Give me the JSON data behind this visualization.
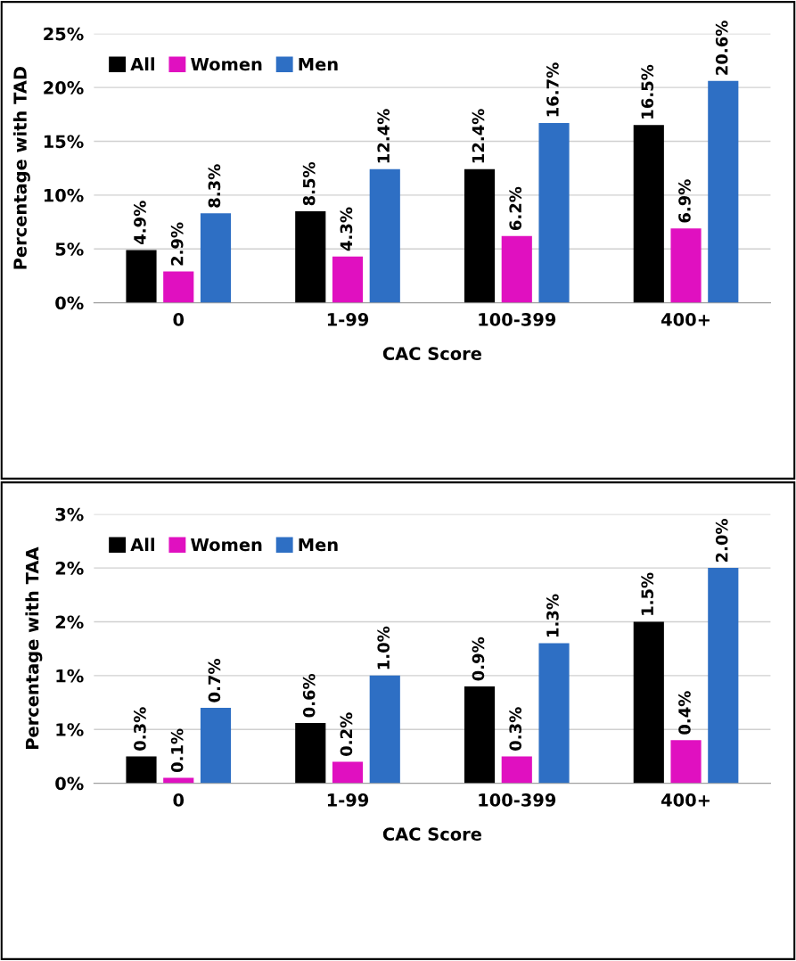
{
  "chart_data": [
    {
      "type": "bar",
      "xlabel": "CAC Score",
      "ylabel": "Percentage with TAD",
      "categories": [
        "0",
        "1-99",
        "100-399",
        "400+"
      ],
      "series": [
        {
          "name": "All",
          "color": "#000000",
          "values": [
            4.9,
            8.5,
            12.4,
            16.5
          ],
          "value_labels": [
            "4.9%",
            "8.5%",
            "12.4%",
            "16.5%"
          ]
        },
        {
          "name": "Women",
          "color": "#e010c0",
          "values": [
            2.9,
            4.3,
            6.2,
            6.9
          ],
          "value_labels": [
            "2.9%",
            "4.3%",
            "6.2%",
            "6.9%"
          ]
        },
        {
          "name": "Men",
          "color": "#2e6fc4",
          "values": [
            8.3,
            12.4,
            16.7,
            20.6
          ],
          "value_labels": [
            "8.3%",
            "12.4%",
            "16.7%",
            "20.6%"
          ]
        }
      ],
      "ylim": [
        0,
        25
      ],
      "yticks": [
        {
          "value": 0,
          "label": "0%"
        },
        {
          "value": 5,
          "label": "5%"
        },
        {
          "value": 10,
          "label": "10%"
        },
        {
          "value": 15,
          "label": "15%"
        },
        {
          "value": 20,
          "label": "20%"
        },
        {
          "value": 25,
          "label": "25%"
        }
      ],
      "grid": "y",
      "legend": "top left"
    },
    {
      "type": "bar",
      "xlabel": "CAC Score",
      "ylabel": "Percentage with TAA",
      "categories": [
        "0",
        "1-99",
        "100-399",
        "400+"
      ],
      "series": [
        {
          "name": "All",
          "color": "#000000",
          "values": [
            0.25,
            0.56,
            0.9,
            1.5
          ],
          "value_labels": [
            "0.3%",
            "0.6%",
            "0.9%",
            "1.5%"
          ]
        },
        {
          "name": "Women",
          "color": "#e010c0",
          "values": [
            0.05,
            0.2,
            0.25,
            0.4
          ],
          "value_labels": [
            "0.1%",
            "0.2%",
            "0.3%",
            "0.4%"
          ]
        },
        {
          "name": "Men",
          "color": "#2e6fc4",
          "values": [
            0.7,
            1.0,
            1.3,
            2.0
          ],
          "value_labels": [
            "0.7%",
            "1.0%",
            "1.3%",
            "2.0%"
          ]
        }
      ],
      "ylim": [
        0,
        2.5
      ],
      "yticks": [
        {
          "value": 0,
          "label": "0%"
        },
        {
          "value": 0.5,
          "label": "1%"
        },
        {
          "value": 1.0,
          "label": "1%"
        },
        {
          "value": 1.5,
          "label": "2%"
        },
        {
          "value": 2.0,
          "label": "2%"
        },
        {
          "value": 2.5,
          "label": "3%"
        }
      ],
      "grid": "y",
      "legend": "top left"
    }
  ]
}
